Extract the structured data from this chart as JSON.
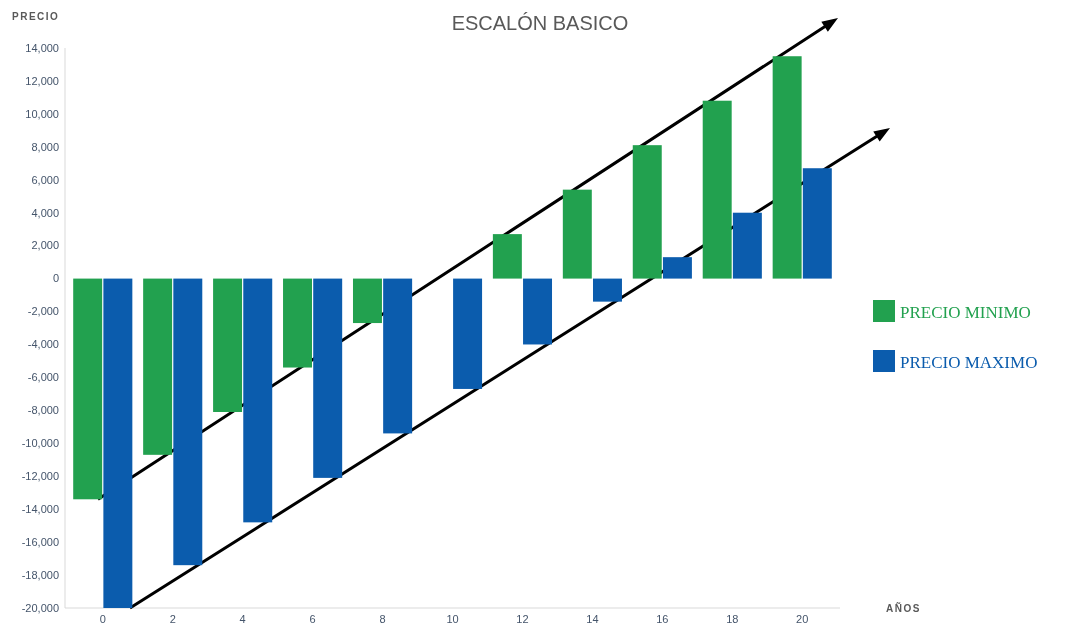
{
  "chart_data": {
    "type": "bar",
    "title": "ESCALÓN BASICO",
    "ylabel": "PRECIO",
    "xlabel": "AÑOS",
    "categories": [
      "0",
      "2",
      "4",
      "6",
      "8",
      "10",
      "12",
      "14",
      "16",
      "18",
      "20"
    ],
    "series": [
      {
        "name": "PRECIO MINIMO",
        "color": "#22a14f",
        "values": [
          -13400,
          -10700,
          -8100,
          -5400,
          -2700,
          0,
          2700,
          5400,
          8100,
          10800,
          13500
        ]
      },
      {
        "name": "PRECIO MAXIMO",
        "color": "#0b5cad",
        "values": [
          -20000,
          -17400,
          -14800,
          -12100,
          -9400,
          -6700,
          -4000,
          -1400,
          1300,
          4000,
          6700
        ]
      }
    ],
    "ylim": [
      -20000,
      14000
    ],
    "yticks": [
      {
        "value": -20000,
        "label": "-20,000"
      },
      {
        "value": -18000,
        "label": "-18,000"
      },
      {
        "value": -16000,
        "label": "-16,000"
      },
      {
        "value": -14000,
        "label": "-14,000"
      },
      {
        "value": -12000,
        "label": "-12,000"
      },
      {
        "value": -10000,
        "label": "-10,000"
      },
      {
        "value": -8000,
        "label": "-8,000"
      },
      {
        "value": -6000,
        "label": "-6,000"
      },
      {
        "value": -4000,
        "label": "-4,000"
      },
      {
        "value": -2000,
        "label": "-2,000"
      },
      0,
      {
        "value": 2000,
        "label": "2,000"
      },
      {
        "value": 4000,
        "label": "4,000"
      },
      {
        "value": 6000,
        "label": "6,000"
      },
      {
        "value": 8000,
        "label": "8,000"
      },
      {
        "value": 10000,
        "label": "10,000"
      },
      {
        "value": 12000,
        "label": "12,000"
      },
      {
        "value": 14000,
        "label": "14,000"
      }
    ],
    "grid": false,
    "legend": "right"
  }
}
